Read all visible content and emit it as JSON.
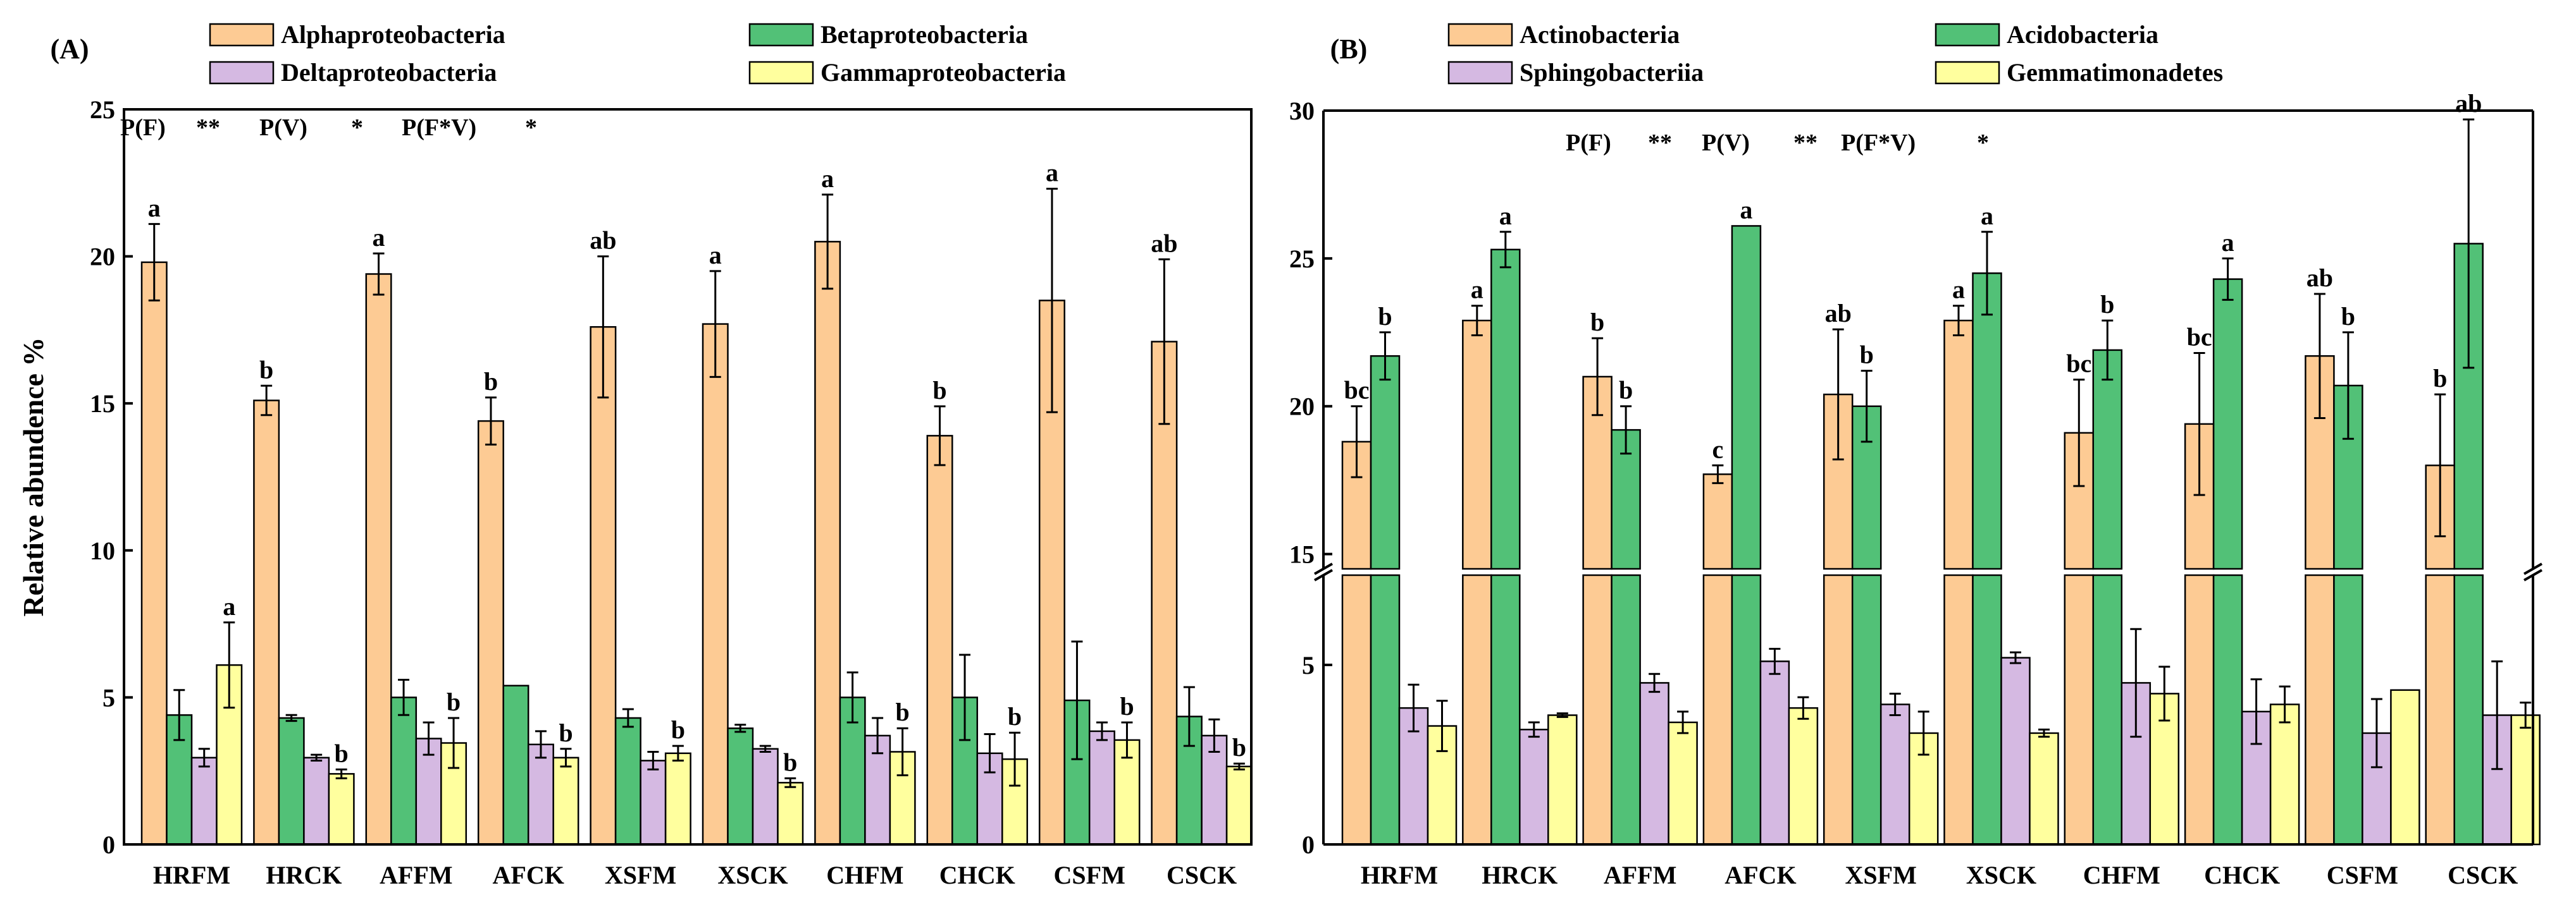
{
  "colors": {
    "alpha": "#FDCB94",
    "beta": "#52C177",
    "delta": "#D5B9E2",
    "gamma": "#FFFF9E",
    "axis": "#000000"
  },
  "chart_data": [
    {
      "type": "bar",
      "panel_label": "(A)",
      "ylabel": "Relative abundence  %",
      "ylim": [
        0,
        25
      ],
      "yticks": [
        0,
        5,
        10,
        15,
        20,
        25
      ],
      "categories": [
        "HRFM",
        "HRCK",
        "AFFM",
        "AFCK",
        "XSFM",
        "XSCK",
        "CHFM",
        "CHCK",
        "CSFM",
        "CSCK"
      ],
      "series": [
        {
          "name": "Alphaproteobacteria",
          "color_key": "alpha",
          "values": [
            19.8,
            15.1,
            19.4,
            14.4,
            17.6,
            17.7,
            20.5,
            13.9,
            18.5,
            17.1
          ],
          "errors": [
            1.3,
            0.5,
            0.7,
            0.8,
            2.4,
            1.8,
            1.6,
            1.0,
            3.8,
            2.8
          ],
          "letters": [
            "a",
            "b",
            "a",
            "b",
            "ab",
            "a",
            "a",
            "b",
            "a",
            "ab"
          ]
        },
        {
          "name": "Betaproteobacteria",
          "color_key": "beta",
          "values": [
            4.4,
            4.3,
            5.0,
            5.4,
            4.3,
            3.95,
            5.0,
            5.0,
            4.9,
            4.35
          ],
          "errors": [
            0.85,
            0.1,
            0.6,
            0,
            0.3,
            0.12,
            0.85,
            1.45,
            2.0,
            1.0
          ],
          "letters": [
            "",
            "",
            "",
            "",
            "",
            "",
            "",
            "",
            "",
            ""
          ]
        },
        {
          "name": "Deltaproteobacteria",
          "color_key": "delta",
          "values": [
            2.95,
            2.95,
            3.6,
            3.4,
            2.85,
            3.25,
            3.7,
            3.1,
            3.85,
            3.7
          ],
          "errors": [
            0.3,
            0.1,
            0.55,
            0.45,
            0.3,
            0.1,
            0.6,
            0.65,
            0.3,
            0.55
          ],
          "letters": [
            "",
            "",
            "",
            "",
            "",
            "",
            "",
            "",
            "",
            ""
          ]
        },
        {
          "name": "Gammaproteobacteria",
          "color_key": "gamma",
          "values": [
            6.1,
            2.4,
            3.45,
            2.95,
            3.1,
            2.1,
            3.15,
            2.9,
            3.55,
            2.65
          ],
          "errors": [
            1.45,
            0.15,
            0.85,
            0.3,
            0.25,
            0.15,
            0.8,
            0.9,
            0.6,
            0.1
          ],
          "letters": [
            "a",
            "b",
            "b",
            "b",
            "b",
            "b",
            "b",
            "b",
            "b",
            "b"
          ]
        }
      ],
      "stats": [
        {
          "label": "P(F)",
          "sig": "**"
        },
        {
          "label": "P(V)",
          "sig": "*"
        },
        {
          "label": "P(F*V)",
          "sig": "*"
        }
      ]
    },
    {
      "type": "bar",
      "panel_label": "(B)",
      "ylabel": "",
      "ylim": [
        0,
        30
      ],
      "axis_break": [
        7.5,
        14.5
      ],
      "yticks": [
        0,
        5,
        15,
        20,
        25,
        30
      ],
      "categories": [
        "HRFM",
        "HRCK",
        "AFFM",
        "AFCK",
        "XSFM",
        "XSCK",
        "CHFM",
        "CHCK",
        "CSFM",
        "CSCK"
      ],
      "series": [
        {
          "name": "Actinobacteria",
          "color_key": "alpha",
          "values": [
            18.8,
            22.9,
            21.0,
            17.7,
            20.4,
            22.9,
            19.1,
            19.4,
            21.7,
            18.0
          ],
          "errors": [
            1.2,
            0.5,
            1.3,
            0.3,
            2.2,
            0.5,
            1.8,
            2.4,
            2.1,
            2.4
          ],
          "letters": [
            "bc",
            "a",
            "b",
            "c",
            "ab",
            "a",
            "bc",
            "bc",
            "ab",
            "b"
          ]
        },
        {
          "name": "Acidobacteria",
          "color_key": "beta",
          "values": [
            21.7,
            25.3,
            19.2,
            26.1,
            20.0,
            24.5,
            21.9,
            24.3,
            20.7,
            25.5
          ],
          "errors": [
            0.8,
            0.6,
            0.8,
            0,
            1.2,
            1.4,
            1.0,
            0.7,
            1.8,
            4.2
          ],
          "letters": [
            "b",
            "a",
            "b",
            "a",
            "b",
            "a",
            "b",
            "a",
            "b",
            "ab"
          ]
        },
        {
          "name": "Sphingobacteriia",
          "color_key": "delta",
          "values": [
            3.8,
            3.2,
            4.5,
            5.1,
            3.9,
            5.2,
            4.5,
            3.7,
            3.1,
            3.6
          ],
          "errors": [
            0.65,
            0.2,
            0.25,
            0.35,
            0.3,
            0.15,
            1.5,
            0.9,
            0.95,
            1.5
          ],
          "letters": [
            "",
            "",
            "",
            "",
            "",
            "",
            "",
            "",
            "",
            ""
          ]
        },
        {
          "name": "Gemmatimonadetes",
          "color_key": "gamma",
          "values": [
            3.3,
            3.6,
            3.4,
            3.8,
            3.1,
            3.1,
            4.2,
            3.9,
            4.3,
            3.6
          ],
          "errors": [
            0.7,
            0.05,
            0.3,
            0.3,
            0.6,
            0.1,
            0.75,
            0.5,
            0,
            0.35
          ],
          "letters": [
            "",
            "",
            "",
            "",
            "",
            "",
            "",
            "",
            "",
            ""
          ]
        }
      ],
      "stats": [
        {
          "label": "P(F)",
          "sig": "**"
        },
        {
          "label": "P(V)",
          "sig": "**"
        },
        {
          "label": "P(F*V)",
          "sig": "*"
        }
      ]
    }
  ]
}
